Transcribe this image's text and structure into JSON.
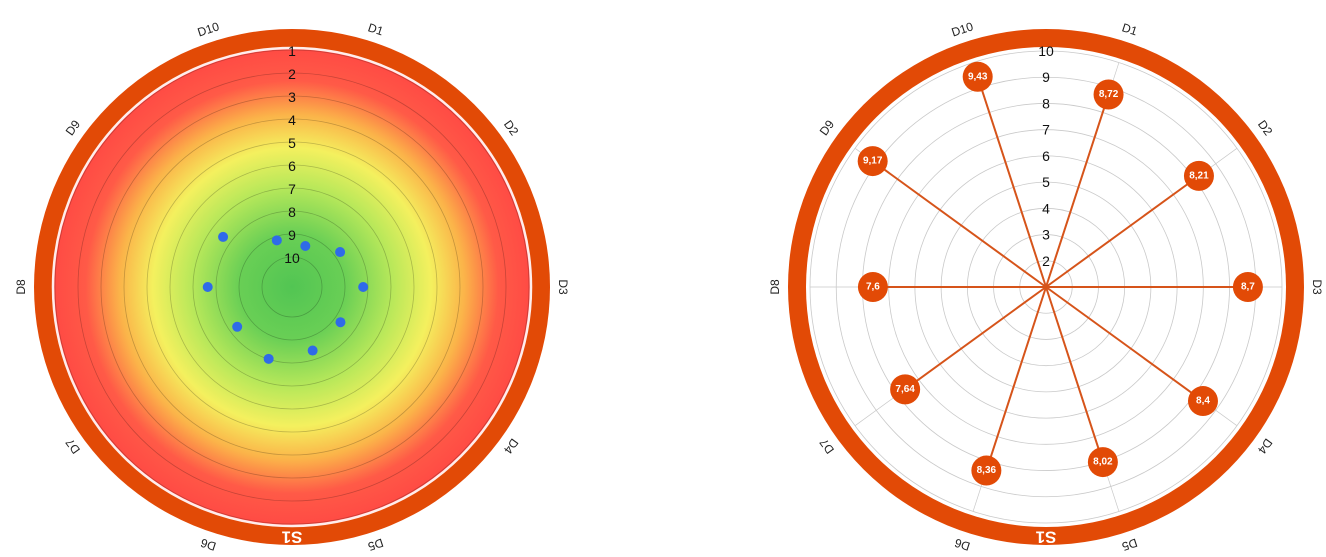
{
  "colors": {
    "ring": "#E24A06",
    "point": "#2F6BE8",
    "stem": "#D6541A",
    "grid": "#c9c9c9",
    "heat": [
      "#52C553",
      "#69CF55",
      "#B8E85A",
      "#F4F05E",
      "#FBB349",
      "#FF5A47",
      "#FF4A44"
    ]
  },
  "chart_data": [
    {
      "type": "scatter",
      "subtype": "polar",
      "ring_label": "S1",
      "dimensions": [
        "D1",
        "D2",
        "D3",
        "D4",
        "D5",
        "D6",
        "D7",
        "D8",
        "D9",
        "D10"
      ],
      "radial_ticks": [
        "1",
        "2",
        "3",
        "4",
        "5",
        "6",
        "7",
        "8",
        "9",
        "10"
      ],
      "radial_axis": "reversed",
      "rlim": [
        1,
        10
      ],
      "background": "heat-gradient",
      "values": [
        9.43,
        8.72,
        8.21,
        8.7,
        8.4,
        8.02,
        8.36,
        7.64,
        7.6,
        9.17
      ]
    },
    {
      "type": "scatter",
      "subtype": "polar-lollipop",
      "ring_label": "S1",
      "dimensions": [
        "D1",
        "D2",
        "D3",
        "D4",
        "D5",
        "D6",
        "D7",
        "D8",
        "D9",
        "D10"
      ],
      "radial_ticks": [
        "2",
        "3",
        "4",
        "5",
        "6",
        "7",
        "8",
        "9",
        "10"
      ],
      "rlim": [
        1,
        10
      ],
      "values": [
        8.72,
        8.21,
        8.7,
        8.4,
        8.02,
        8.36,
        7.64,
        7.6,
        9.17,
        9.43
      ],
      "labels": [
        "8,72",
        "8,21",
        "8,7",
        "8,4",
        "8,02",
        "8,36",
        "7,64",
        "7,6",
        "9,17",
        "9,43"
      ]
    }
  ]
}
